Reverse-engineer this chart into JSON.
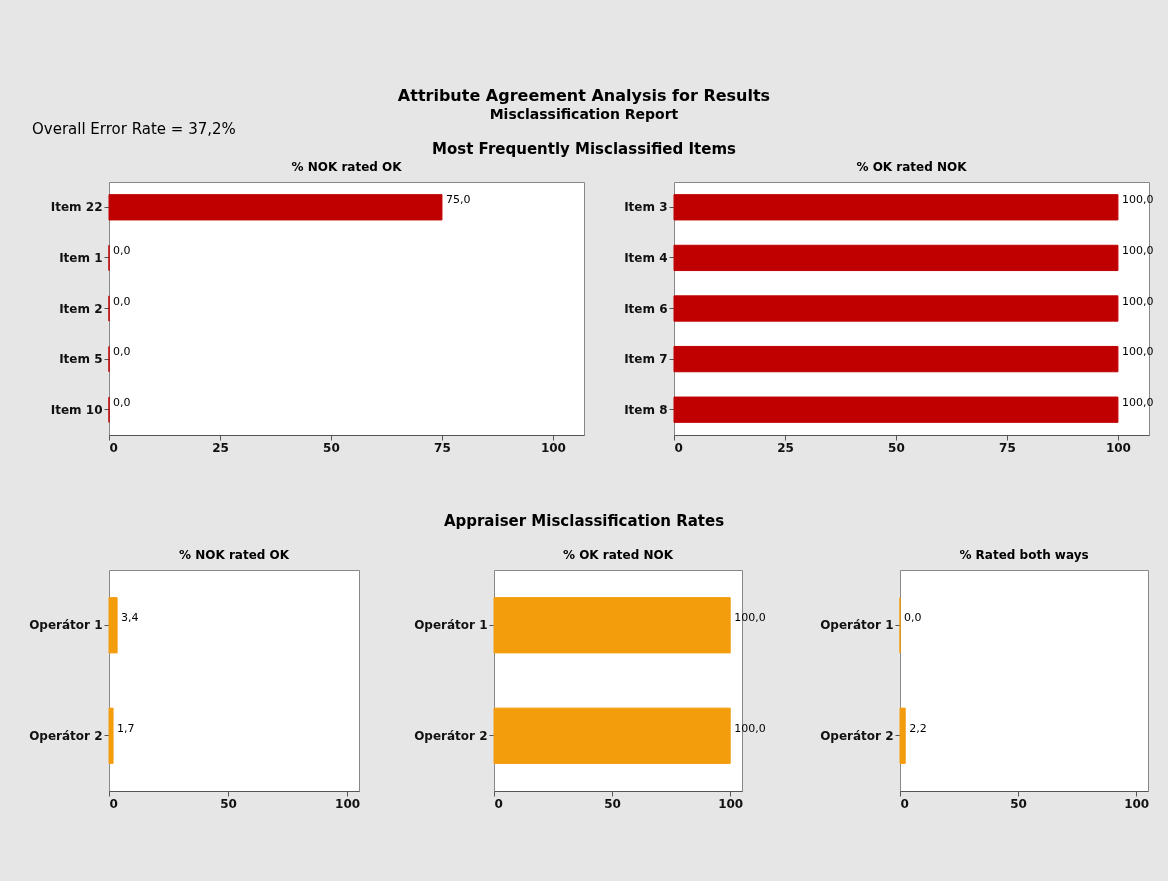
{
  "chart_data": [
    {
      "type": "bar",
      "orientation": "horizontal",
      "title": "% NOK rated OK",
      "subtitle": null,
      "categories": [
        "Item 22",
        "Item 1",
        "Item 2",
        "Item 5",
        "Item 10"
      ],
      "values": [
        75,
        0,
        0,
        0,
        0
      ],
      "value_labels": [
        "75,0",
        "0,0",
        "0,0",
        "0,0",
        "0,0"
      ],
      "color": "#c00000",
      "xlim": [
        0,
        107
      ],
      "xticks": [
        0,
        25,
        50,
        75,
        100
      ],
      "annotations": [
        "Attribute Agreement Analysis for Results",
        "Misclassification Report",
        "Overall Error Rate = 37,2%",
        "Most Frequently Misclassified Items"
      ]
    },
    {
      "type": "bar",
      "orientation": "horizontal",
      "title": "% OK rated NOK",
      "categories": [
        "Item 3",
        "Item 4",
        "Item 6",
        "Item 7",
        "Item 8"
      ],
      "values": [
        100,
        100,
        100,
        100,
        100
      ],
      "value_labels": [
        "100,0",
        "100,0",
        "100,0",
        "100,0",
        "100,0"
      ],
      "color": "#c00000",
      "xlim": [
        0,
        107
      ],
      "xticks": [
        0,
        25,
        50,
        75,
        100
      ]
    },
    {
      "type": "bar",
      "orientation": "horizontal",
      "title": "% NOK rated OK",
      "categories": [
        "Operátor 1",
        "Operátor 2"
      ],
      "values": [
        3.4,
        1.7
      ],
      "value_labels": [
        "3,4",
        "1,7"
      ],
      "color": "#f39c0c",
      "xlim": [
        0,
        105
      ],
      "xticks": [
        0,
        50,
        100
      ],
      "annotations": [
        "Appraiser Misclassification Rates"
      ]
    },
    {
      "type": "bar",
      "orientation": "horizontal",
      "title": "% OK rated NOK",
      "categories": [
        "Operátor 1",
        "Operátor 2"
      ],
      "values": [
        100,
        100
      ],
      "value_labels": [
        "100,0",
        "100,0"
      ],
      "color": "#f39c0c",
      "xlim": [
        0,
        105
      ],
      "xticks": [
        0,
        50,
        100
      ]
    },
    {
      "type": "bar",
      "orientation": "horizontal",
      "title": "% Rated both ways",
      "categories": [
        "Operátor 1",
        "Operátor 2"
      ],
      "values": [
        0,
        2.2
      ],
      "value_labels": [
        "0,0",
        "2,2"
      ],
      "color": "#f39c0c",
      "xlim": [
        0,
        105
      ],
      "xticks": [
        0,
        50,
        100
      ]
    }
  ]
}
